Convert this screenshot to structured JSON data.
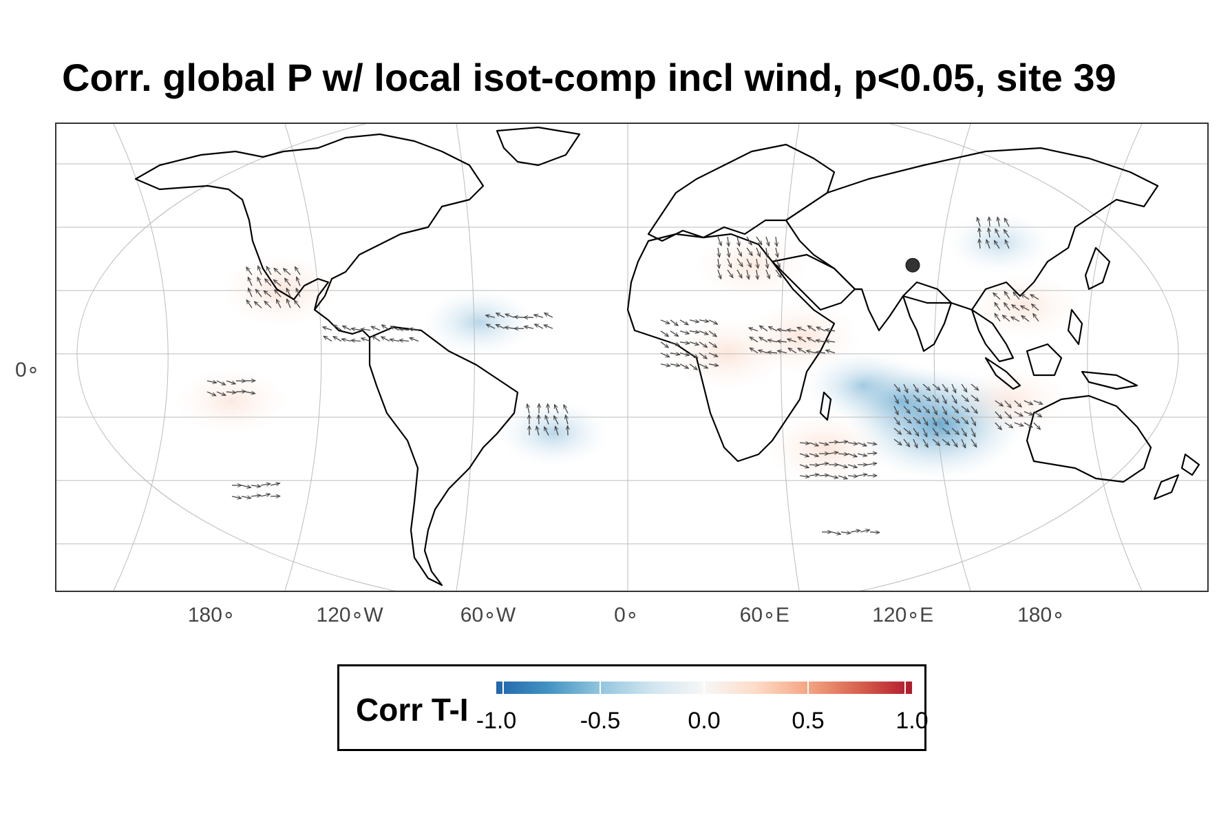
{
  "title": "Corr. global P w/ local isot-comp incl wind, p<0.05, site 39",
  "map": {
    "site_marker": {
      "label": "site 39",
      "lon": 115,
      "lat": 28
    },
    "lat_labels": [
      {
        "text": "0∘",
        "lat": 0
      }
    ],
    "lon_labels": [
      {
        "text": "180∘",
        "lon": -180
      },
      {
        "text": "120∘W",
        "lon": -120
      },
      {
        "text": "60∘W",
        "lon": -60
      },
      {
        "text": "0∘",
        "lon": 0
      },
      {
        "text": "60∘E",
        "lon": 60
      },
      {
        "text": "120∘E",
        "lon": 120
      },
      {
        "text": "180∘",
        "lon": 180
      }
    ],
    "colors": {
      "positive": "#f4a582",
      "negative": "#6aa9d4",
      "land_outline": "#000000",
      "arrow": "#444444",
      "grid": "#bbbbbb"
    },
    "correlation_patches": [
      {
        "lon": 125,
        "lat": -22,
        "value": -0.7
      },
      {
        "lon": 110,
        "lat": -15,
        "value": -0.3
      },
      {
        "lon": 95,
        "lat": -10,
        "value": -0.2
      },
      {
        "lon": 40,
        "lat": 0,
        "value": 0.2
      },
      {
        "lon": 70,
        "lat": 5,
        "value": 0.2
      },
      {
        "lon": 50,
        "lat": 28,
        "value": 0.15
      },
      {
        "lon": 80,
        "lat": -30,
        "value": 0.2
      },
      {
        "lon": -140,
        "lat": 20,
        "value": 0.2
      },
      {
        "lon": -160,
        "lat": -15,
        "value": 0.15
      },
      {
        "lon": -30,
        "lat": -25,
        "value": -0.15
      },
      {
        "lon": -60,
        "lat": 10,
        "value": -0.15
      },
      {
        "lon": 160,
        "lat": 15,
        "value": 0.15
      },
      {
        "lon": 155,
        "lat": -15,
        "value": 0.15
      },
      {
        "lon": 150,
        "lat": 35,
        "value": -0.1
      }
    ]
  },
  "legend": {
    "title": "Corr T-I",
    "colorbar": {
      "min": -1.0,
      "max": 1.0
    },
    "ticks": [
      "-1.0",
      "-0.5",
      "0.0",
      "0.5",
      "1.0"
    ]
  }
}
